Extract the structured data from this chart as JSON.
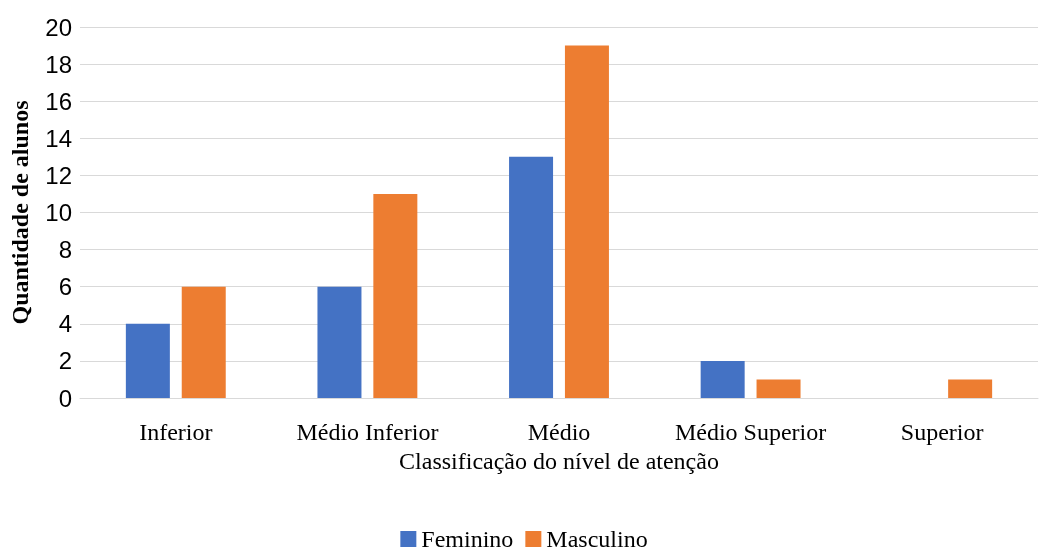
{
  "chart_data": {
    "type": "bar",
    "xlabel": "Classificação do nível de atenção",
    "ylabel": "Quantidade de alunos",
    "categories": [
      "Inferior",
      "Médio Inferior",
      "Médio",
      "Médio Superior",
      "Superior"
    ],
    "series": [
      {
        "name": "Feminino",
        "color": "#4472c4",
        "values": [
          4,
          6,
          13,
          2,
          0
        ]
      },
      {
        "name": "Masculino",
        "color": "#ed7d31",
        "values": [
          6,
          11,
          19,
          1,
          1
        ]
      }
    ],
    "ylim": [
      0,
      20
    ],
    "yticks": [
      0,
      2,
      4,
      6,
      8,
      10,
      12,
      14,
      16,
      18,
      20
    ],
    "grid": "y",
    "legend": "bottom"
  }
}
